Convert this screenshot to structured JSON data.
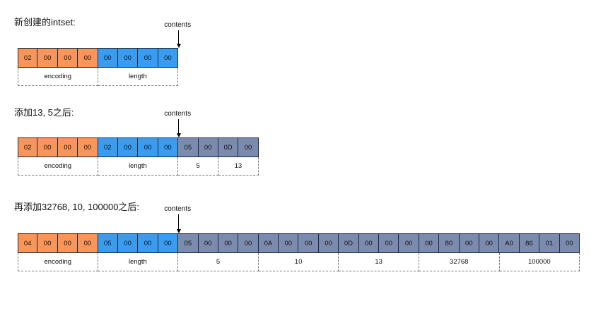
{
  "diagrams": [
    {
      "heading": "新创建的intset:",
      "contents_label": "contents",
      "bytes": [
        {
          "v": "02",
          "c": "orange"
        },
        {
          "v": "00",
          "c": "orange"
        },
        {
          "v": "00",
          "c": "orange"
        },
        {
          "v": "00",
          "c": "orange"
        },
        {
          "v": "00",
          "c": "blue"
        },
        {
          "v": "00",
          "c": "blue"
        },
        {
          "v": "00",
          "c": "blue"
        },
        {
          "v": "00",
          "c": "blue"
        }
      ],
      "labels": [
        {
          "text": "encoding",
          "span": 4
        },
        {
          "text": "length",
          "span": 4
        }
      ]
    },
    {
      "heading": "添加13, 5之后:",
      "contents_label": "contents",
      "bytes": [
        {
          "v": "02",
          "c": "orange"
        },
        {
          "v": "00",
          "c": "orange"
        },
        {
          "v": "00",
          "c": "orange"
        },
        {
          "v": "00",
          "c": "orange"
        },
        {
          "v": "02",
          "c": "blue"
        },
        {
          "v": "00",
          "c": "blue"
        },
        {
          "v": "00",
          "c": "blue"
        },
        {
          "v": "00",
          "c": "blue"
        },
        {
          "v": "05",
          "c": "slate"
        },
        {
          "v": "00",
          "c": "slate"
        },
        {
          "v": "0D",
          "c": "slate"
        },
        {
          "v": "00",
          "c": "slate"
        }
      ],
      "labels": [
        {
          "text": "encoding",
          "span": 4
        },
        {
          "text": "length",
          "span": 4
        },
        {
          "text": "5",
          "span": 2
        },
        {
          "text": "13",
          "span": 2
        }
      ]
    },
    {
      "heading": "再添加32768, 10, 100000之后:",
      "contents_label": "contents",
      "bytes": [
        {
          "v": "04",
          "c": "orange"
        },
        {
          "v": "00",
          "c": "orange"
        },
        {
          "v": "00",
          "c": "orange"
        },
        {
          "v": "00",
          "c": "orange"
        },
        {
          "v": "05",
          "c": "blue"
        },
        {
          "v": "00",
          "c": "blue"
        },
        {
          "v": "00",
          "c": "blue"
        },
        {
          "v": "00",
          "c": "blue"
        },
        {
          "v": "05",
          "c": "slate"
        },
        {
          "v": "00",
          "c": "slate"
        },
        {
          "v": "00",
          "c": "slate"
        },
        {
          "v": "00",
          "c": "slate"
        },
        {
          "v": "0A",
          "c": "slate"
        },
        {
          "v": "00",
          "c": "slate"
        },
        {
          "v": "00",
          "c": "slate"
        },
        {
          "v": "00",
          "c": "slate"
        },
        {
          "v": "0D",
          "c": "slate"
        },
        {
          "v": "00",
          "c": "slate"
        },
        {
          "v": "00",
          "c": "slate"
        },
        {
          "v": "00",
          "c": "slate"
        },
        {
          "v": "00",
          "c": "slate"
        },
        {
          "v": "80",
          "c": "slate"
        },
        {
          "v": "00",
          "c": "slate"
        },
        {
          "v": "00",
          "c": "slate"
        },
        {
          "v": "A0",
          "c": "slate"
        },
        {
          "v": "86",
          "c": "slate"
        },
        {
          "v": "01",
          "c": "slate"
        },
        {
          "v": "00",
          "c": "slate"
        }
      ],
      "labels": [
        {
          "text": "encoding",
          "span": 4
        },
        {
          "text": "length",
          "span": 4
        },
        {
          "text": "5",
          "span": 4
        },
        {
          "text": "10",
          "span": 4
        },
        {
          "text": "13",
          "span": 4
        },
        {
          "text": "32768",
          "span": 4
        },
        {
          "text": "100000",
          "span": 4
        }
      ]
    }
  ]
}
